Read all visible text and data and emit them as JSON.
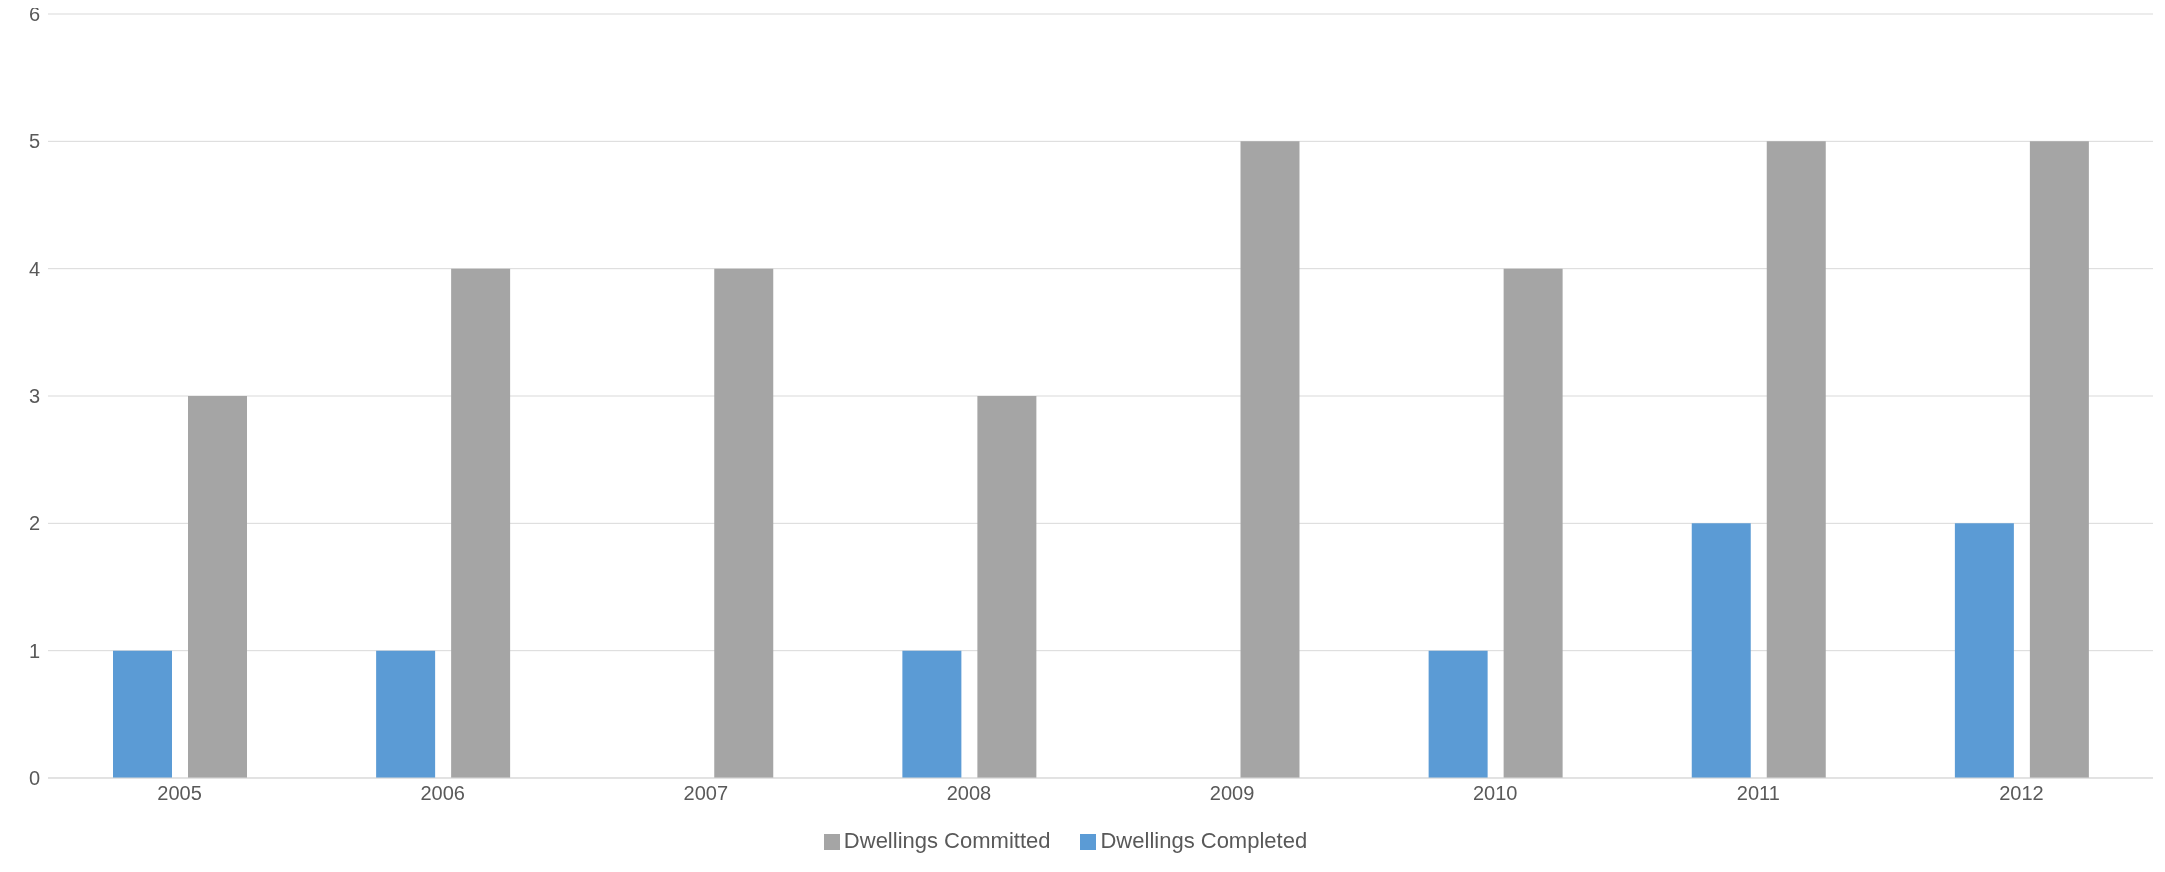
{
  "chart_data": {
    "type": "bar",
    "categories": [
      "2005",
      "2006",
      "2007",
      "2008",
      "2009",
      "2010",
      "2011",
      "2012"
    ],
    "series": [
      {
        "name": "Dwellings Completed",
        "color": "#5b9bd5",
        "values": [
          1,
          1,
          0,
          1,
          0,
          1,
          2,
          2
        ]
      },
      {
        "name": "Dwellings Committed",
        "color": "#a5a5a5",
        "values": [
          3,
          4,
          4,
          3,
          5,
          4,
          5,
          5
        ]
      }
    ],
    "ylim": [
      0,
      6
    ],
    "yticks": [
      0,
      1,
      2,
      3,
      4,
      5,
      6
    ],
    "grid": "y",
    "legend": "bottom"
  }
}
